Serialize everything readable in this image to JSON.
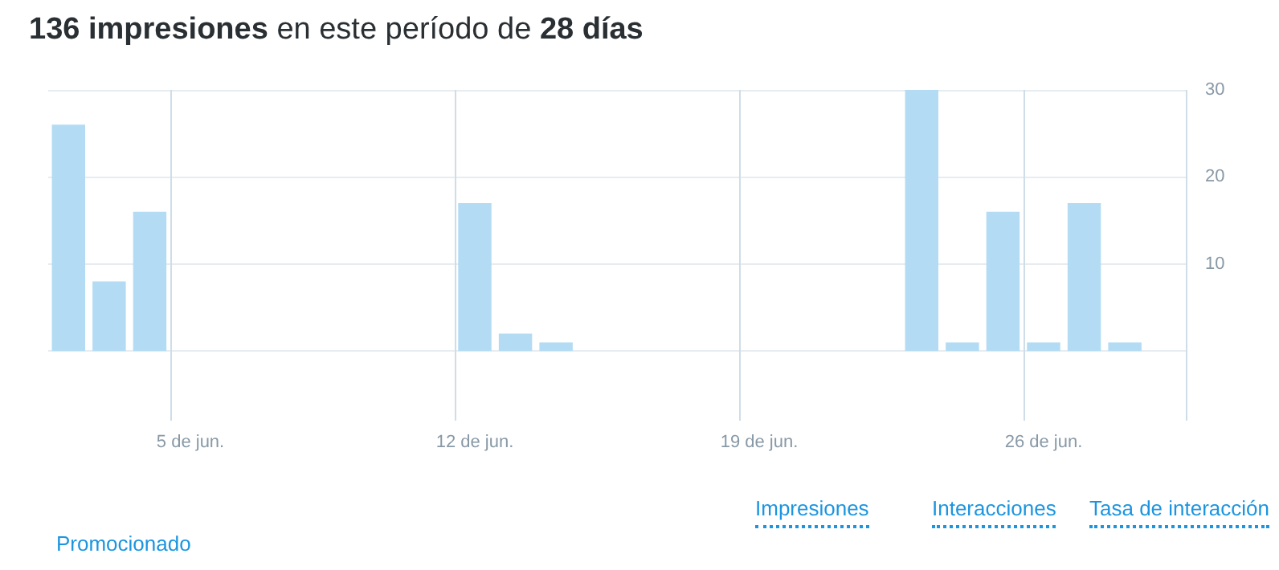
{
  "chart_data": {
    "type": "bar",
    "title": "136 impresiones en este período de 28 días",
    "categories": [
      null,
      null,
      null,
      "5 de jun.",
      null,
      null,
      null,
      null,
      null,
      null,
      "12 de jun.",
      null,
      null,
      null,
      null,
      null,
      null,
      "19 de jun.",
      null,
      null,
      null,
      null,
      null,
      null,
      "26 de jun.",
      null,
      null,
      null
    ],
    "values": [
      26,
      8,
      16,
      0,
      0,
      0,
      0,
      0,
      0,
      0,
      17,
      2,
      1,
      0,
      0,
      0,
      0,
      0,
      0,
      0,
      0,
      30,
      1,
      16,
      1,
      17,
      1,
      0
    ],
    "color": "#b3dcf4",
    "ylim": [
      -8,
      30
    ],
    "yticks": [
      {
        "value": 0,
        "label": null
      },
      10,
      20,
      30
    ],
    "grid": true,
    "annotations": [
      "Promocionado",
      "Impresiones",
      "Interacciones",
      "Tasa de interacción"
    ]
  }
}
